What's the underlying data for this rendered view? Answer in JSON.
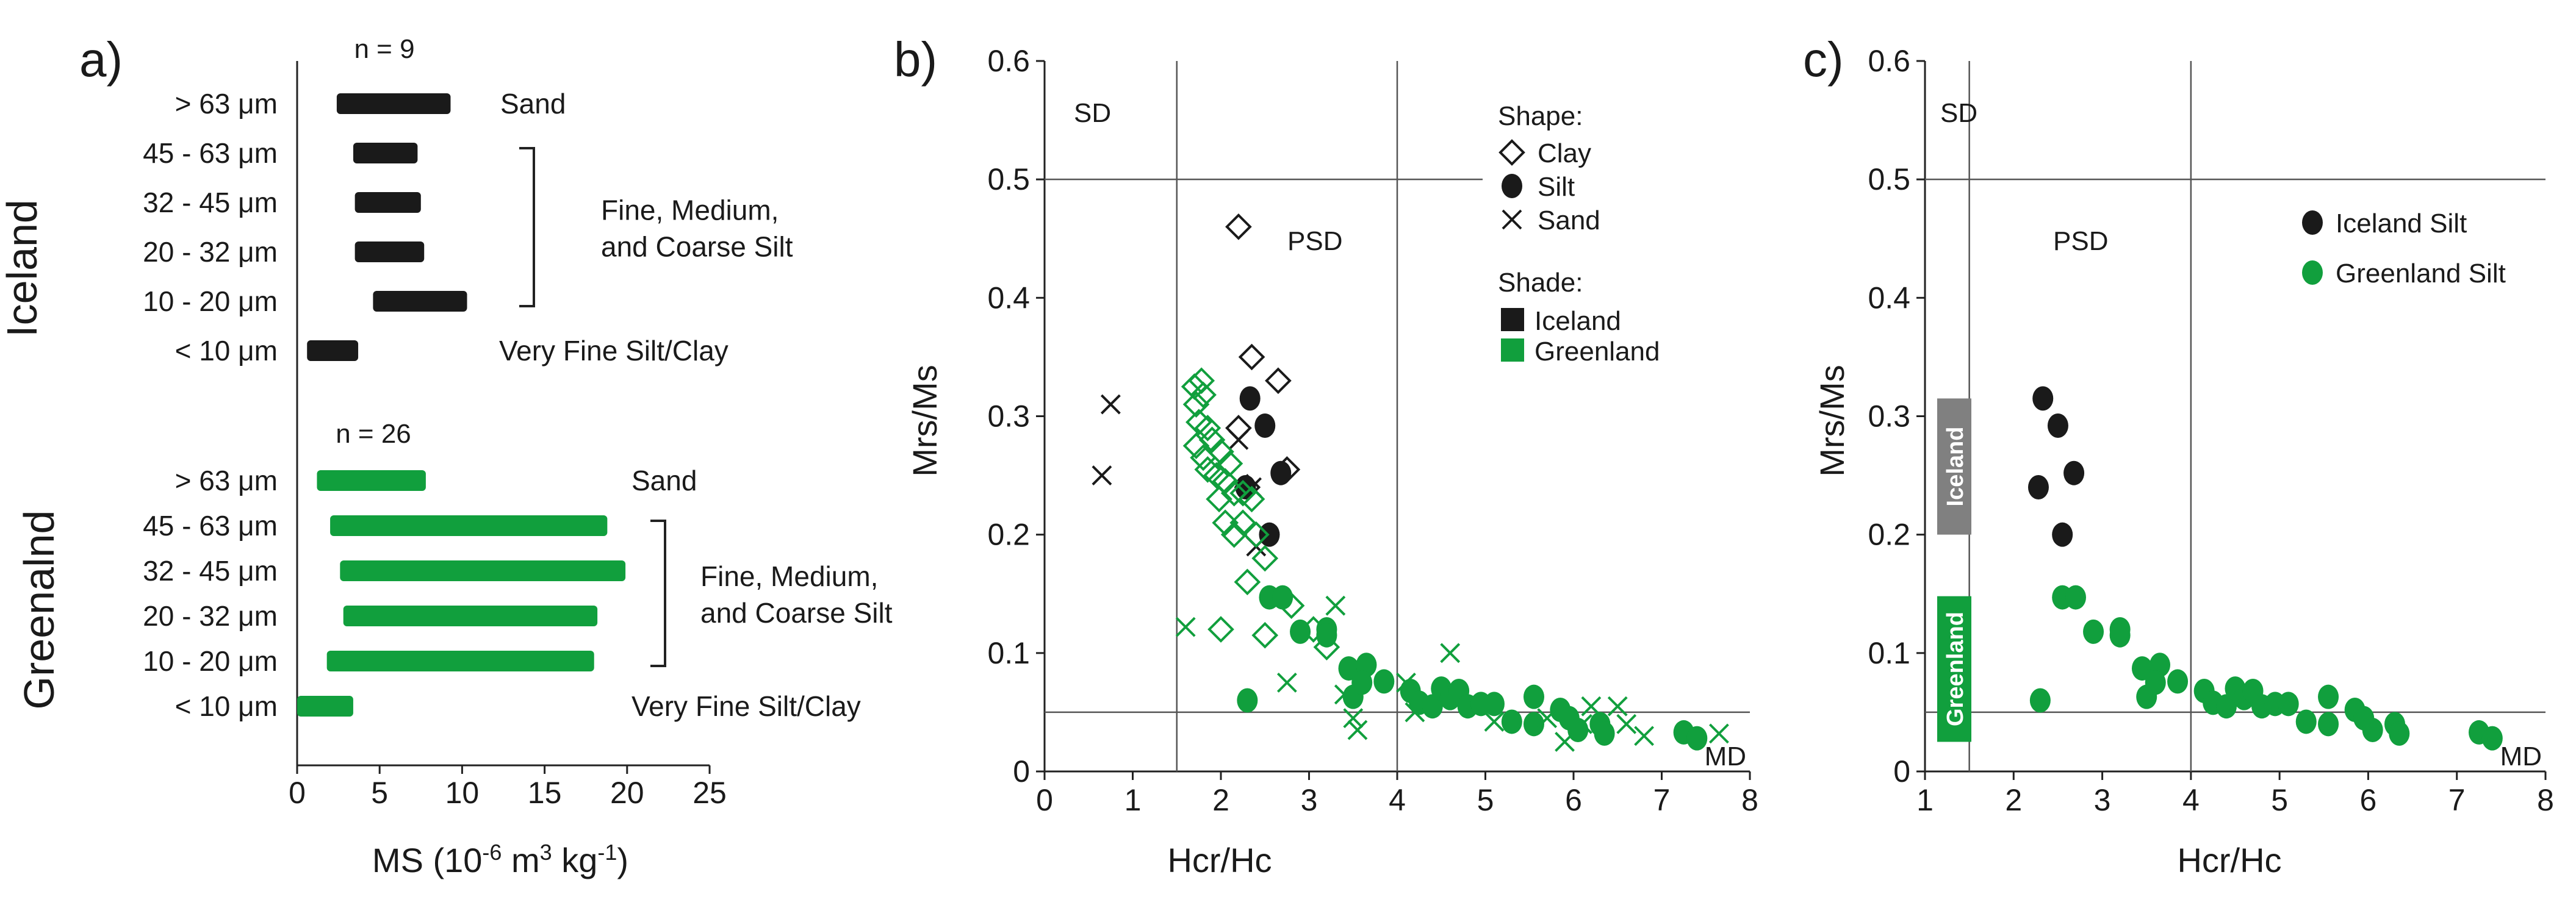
{
  "chart_data": [
    {
      "panel": "a)",
      "type": "bar",
      "orientation": "horizontal-range",
      "xlabel": "MS (10",
      "xlabel_exp": "-6",
      "xlabel_mid": " m",
      "xlabel_exp2": "3",
      "xlabel_end": " kg",
      "xlabel_exp3": "-1",
      "xlabel_close": ")",
      "xlim": [
        0,
        25
      ],
      "xticks": [
        "0",
        "5",
        "10",
        "15",
        "20",
        "25"
      ],
      "groups": [
        {
          "name": "Iceland",
          "n_label": "n = 9",
          "color": "#1a1a1a",
          "bars": [
            {
              "label": "> 63 μm",
              "min": 2.4,
              "max": 9.3
            },
            {
              "label": "45 - 63 μm",
              "min": 3.4,
              "max": 7.3
            },
            {
              "label": "32 - 45 μm",
              "min": 3.5,
              "max": 7.5
            },
            {
              "label": "20 - 32 μm",
              "min": 3.5,
              "max": 7.7
            },
            {
              "label": "10 - 20 μm",
              "min": 4.6,
              "max": 10.3
            },
            {
              "label": "< 10 μm",
              "min": 0.6,
              "max": 3.7
            }
          ],
          "annotations": [
            {
              "text": "Sand",
              "rows": [
                0
              ]
            },
            {
              "text": "Fine, Medium,",
              "line2": "and Coarse Silt",
              "rows": [
                1,
                4
              ],
              "bracket": true
            },
            {
              "text": "Very Fine Silt/Clay",
              "rows": [
                5
              ]
            }
          ]
        },
        {
          "name": "Greenalnd",
          "n_label": "n = 26",
          "color": "#119f3d",
          "bars": [
            {
              "label": "> 63 μm",
              "min": 1.2,
              "max": 7.8
            },
            {
              "label": "45 - 63 μm",
              "min": 2.0,
              "max": 18.8
            },
            {
              "label": "32 - 45 μm",
              "min": 2.6,
              "max": 19.9
            },
            {
              "label": "20 - 32 μm",
              "min": 2.8,
              "max": 18.2
            },
            {
              "label": "10 - 20 μm",
              "min": 1.8,
              "max": 18.0
            },
            {
              "label": "< 10 μm",
              "min": 0.0,
              "max": 3.4
            }
          ],
          "annotations": [
            {
              "text": "Sand",
              "rows": [
                0
              ]
            },
            {
              "text": "Fine, Medium,",
              "line2": "and Coarse Silt",
              "rows": [
                1,
                4
              ],
              "bracket": true
            },
            {
              "text": "Very Fine Silt/Clay",
              "rows": [
                5
              ]
            }
          ]
        }
      ]
    },
    {
      "panel": "b)",
      "type": "scatter",
      "xlabel": "Hcr/Hc",
      "ylabel": "Mrs/Ms",
      "xlim": [
        0,
        8
      ],
      "ylim": [
        0,
        0.6
      ],
      "xticks": [
        "0",
        "1",
        "2",
        "3",
        "4",
        "5",
        "6",
        "7",
        "8"
      ],
      "yticks": [
        "0",
        "0.1",
        "0.2",
        "0.3",
        "0.4",
        "0.5",
        "0.6"
      ],
      "regions": [
        "SD",
        "PSD",
        "MD"
      ],
      "legend": {
        "shape_title": "Shape:",
        "shapes": [
          {
            "marker": "diamond",
            "label": "Clay"
          },
          {
            "marker": "circle",
            "label": "Silt"
          },
          {
            "marker": "cross",
            "label": "Sand"
          }
        ],
        "shade_title": "Shade:",
        "shades": [
          {
            "label": "Iceland",
            "color": "#1a1a1a"
          },
          {
            "label": "Greenland",
            "color": "#119f3d"
          }
        ]
      },
      "series": [
        {
          "name": "Iceland Clay",
          "marker": "diamond",
          "color": "#1a1a1a",
          "points": [
            [
              2.2,
              0.46
            ],
            [
              2.35,
              0.35
            ],
            [
              2.65,
              0.33
            ],
            [
              2.2,
              0.29
            ],
            [
              2.75,
              0.255
            ],
            [
              2.3,
              0.24
            ]
          ]
        },
        {
          "name": "Iceland Silt",
          "marker": "circle",
          "color": "#1a1a1a",
          "points": [
            [
              2.33,
              0.315
            ],
            [
              2.5,
              0.292
            ],
            [
              2.28,
              0.24
            ],
            [
              2.68,
              0.252
            ],
            [
              2.55,
              0.2
            ]
          ]
        },
        {
          "name": "Iceland Sand",
          "marker": "cross",
          "color": "#1a1a1a",
          "points": [
            [
              0.75,
              0.31
            ],
            [
              0.65,
              0.25
            ],
            [
              2.2,
              0.28
            ],
            [
              2.4,
              0.19
            ],
            [
              2.35,
              0.24
            ]
          ]
        },
        {
          "name": "Greenland Clay",
          "marker": "diamond",
          "color": "#119f3d",
          "points": [
            [
              1.7,
              0.325
            ],
            [
              1.78,
              0.33
            ],
            [
              1.72,
              0.31
            ],
            [
              1.8,
              0.318
            ],
            [
              1.75,
              0.295
            ],
            [
              1.72,
              0.275
            ],
            [
              1.85,
              0.29
            ],
            [
              1.8,
              0.265
            ],
            [
              1.9,
              0.28
            ],
            [
              1.85,
              0.255
            ],
            [
              2.0,
              0.27
            ],
            [
              1.95,
              0.25
            ],
            [
              2.05,
              0.245
            ],
            [
              2.1,
              0.26
            ],
            [
              1.98,
              0.23
            ],
            [
              2.15,
              0.235
            ],
            [
              2.25,
              0.235
            ],
            [
              2.35,
              0.23
            ],
            [
              2.05,
              0.21
            ],
            [
              2.15,
              0.2
            ],
            [
              2.25,
              0.21
            ],
            [
              2.4,
              0.2
            ],
            [
              2.5,
              0.18
            ],
            [
              2.3,
              0.16
            ],
            [
              2.5,
              0.115
            ],
            [
              2.0,
              0.12
            ],
            [
              2.8,
              0.14
            ],
            [
              3.05,
              0.12
            ],
            [
              3.2,
              0.105
            ]
          ]
        },
        {
          "name": "Greenland Silt",
          "marker": "circle",
          "color": "#119f3d",
          "points": [
            [
              2.3,
              0.06
            ],
            [
              2.55,
              0.147
            ],
            [
              2.7,
              0.147
            ],
            [
              2.9,
              0.118
            ],
            [
              3.2,
              0.12
            ],
            [
              3.2,
              0.115
            ],
            [
              3.45,
              0.087
            ],
            [
              3.5,
              0.063
            ],
            [
              3.65,
              0.09
            ],
            [
              3.6,
              0.075
            ],
            [
              3.85,
              0.076
            ],
            [
              4.15,
              0.068
            ],
            [
              4.25,
              0.058
            ],
            [
              4.4,
              0.055
            ],
            [
              4.5,
              0.07
            ],
            [
              4.6,
              0.062
            ],
            [
              4.7,
              0.068
            ],
            [
              4.8,
              0.055
            ],
            [
              4.95,
              0.057
            ],
            [
              5.1,
              0.057
            ],
            [
              5.3,
              0.042
            ],
            [
              5.55,
              0.063
            ],
            [
              5.55,
              0.04
            ],
            [
              5.85,
              0.052
            ],
            [
              5.95,
              0.045
            ],
            [
              6.05,
              0.035
            ],
            [
              6.3,
              0.04
            ],
            [
              6.35,
              0.032
            ],
            [
              7.25,
              0.033
            ],
            [
              7.4,
              0.028
            ]
          ]
        },
        {
          "name": "Greenland Sand",
          "marker": "cross",
          "color": "#119f3d",
          "points": [
            [
              1.6,
              0.122
            ],
            [
              3.3,
              0.14
            ],
            [
              2.75,
              0.075
            ],
            [
              3.4,
              0.065
            ],
            [
              3.5,
              0.045
            ],
            [
              3.55,
              0.035
            ],
            [
              4.1,
              0.075
            ],
            [
              4.2,
              0.05
            ],
            [
              4.6,
              0.1
            ],
            [
              5.1,
              0.042
            ],
            [
              5.7,
              0.045
            ],
            [
              5.9,
              0.025
            ],
            [
              6.1,
              0.04
            ],
            [
              6.2,
              0.055
            ],
            [
              6.5,
              0.055
            ],
            [
              6.6,
              0.04
            ],
            [
              6.8,
              0.03
            ],
            [
              7.65,
              0.032
            ]
          ]
        }
      ]
    },
    {
      "panel": "c)",
      "type": "scatter",
      "xlabel": "Hcr/Hc",
      "ylabel": "Mrs/Ms",
      "xlim": [
        1,
        8
      ],
      "ylim": [
        0,
        0.6
      ],
      "xticks": [
        "1",
        "2",
        "3",
        "4",
        "5",
        "6",
        "7",
        "8"
      ],
      "yticks": [
        "0",
        "0.1",
        "0.2",
        "0.3",
        "0.4",
        "0.5",
        "0.6"
      ],
      "regions": [
        "SD",
        "PSD",
        "MD"
      ],
      "range_boxes": [
        {
          "label": "Iceland",
          "color": "#808080",
          "ymin": 0.2,
          "ymax": 0.315
        },
        {
          "label": "Greenland",
          "color": "#119f3d",
          "ymin": 0.025,
          "ymax": 0.148
        }
      ],
      "legend": [
        {
          "label": "Iceland Silt",
          "color": "#1a1a1a"
        },
        {
          "label": "Greenland Silt",
          "color": "#119f3d"
        }
      ],
      "series": [
        {
          "name": "Iceland Silt",
          "marker": "circle",
          "color": "#1a1a1a",
          "points": [
            [
              2.33,
              0.315
            ],
            [
              2.5,
              0.292
            ],
            [
              2.28,
              0.24
            ],
            [
              2.68,
              0.252
            ],
            [
              2.55,
              0.2
            ]
          ]
        },
        {
          "name": "Greenland Silt",
          "marker": "circle",
          "color": "#119f3d",
          "points": [
            [
              2.3,
              0.06
            ],
            [
              2.55,
              0.147
            ],
            [
              2.7,
              0.147
            ],
            [
              2.9,
              0.118
            ],
            [
              3.2,
              0.12
            ],
            [
              3.2,
              0.115
            ],
            [
              3.45,
              0.087
            ],
            [
              3.5,
              0.063
            ],
            [
              3.65,
              0.09
            ],
            [
              3.6,
              0.075
            ],
            [
              3.85,
              0.076
            ],
            [
              4.15,
              0.068
            ],
            [
              4.25,
              0.058
            ],
            [
              4.4,
              0.055
            ],
            [
              4.5,
              0.07
            ],
            [
              4.6,
              0.062
            ],
            [
              4.7,
              0.068
            ],
            [
              4.8,
              0.055
            ],
            [
              4.95,
              0.057
            ],
            [
              5.1,
              0.057
            ],
            [
              5.3,
              0.042
            ],
            [
              5.55,
              0.063
            ],
            [
              5.55,
              0.04
            ],
            [
              5.85,
              0.052
            ],
            [
              5.95,
              0.045
            ],
            [
              6.05,
              0.035
            ],
            [
              6.3,
              0.04
            ],
            [
              6.35,
              0.032
            ],
            [
              7.25,
              0.033
            ],
            [
              7.4,
              0.028
            ]
          ]
        }
      ]
    }
  ]
}
